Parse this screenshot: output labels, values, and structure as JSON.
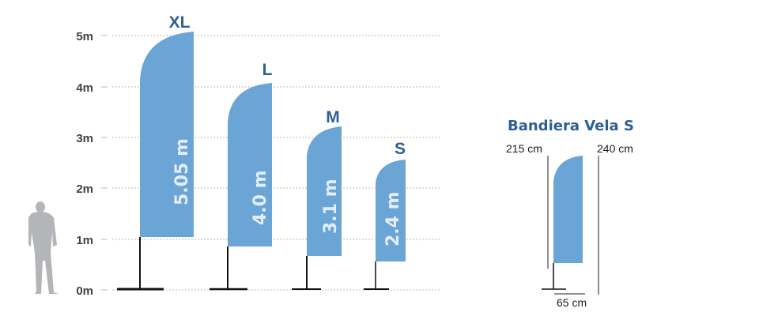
{
  "axis": {
    "ticks": [
      "0m",
      "1m",
      "2m",
      "3m",
      "4m",
      "5m"
    ]
  },
  "flags": [
    {
      "size": "XL",
      "height_label": "5.05 m"
    },
    {
      "size": "L",
      "height_label": "4.0 m"
    },
    {
      "size": "M",
      "height_label": "3.1 m"
    },
    {
      "size": "S",
      "height_label": "2.4 m"
    }
  ],
  "detail": {
    "title": "Bandiera Vela S",
    "flag_height": "215 cm",
    "total_height": "240 cm",
    "flag_width": "65 cm"
  },
  "colors": {
    "flag": "#6aa5d6",
    "accent": "#2d5f96",
    "human": "#b4b5b8",
    "grid": "#bbbbbb"
  }
}
